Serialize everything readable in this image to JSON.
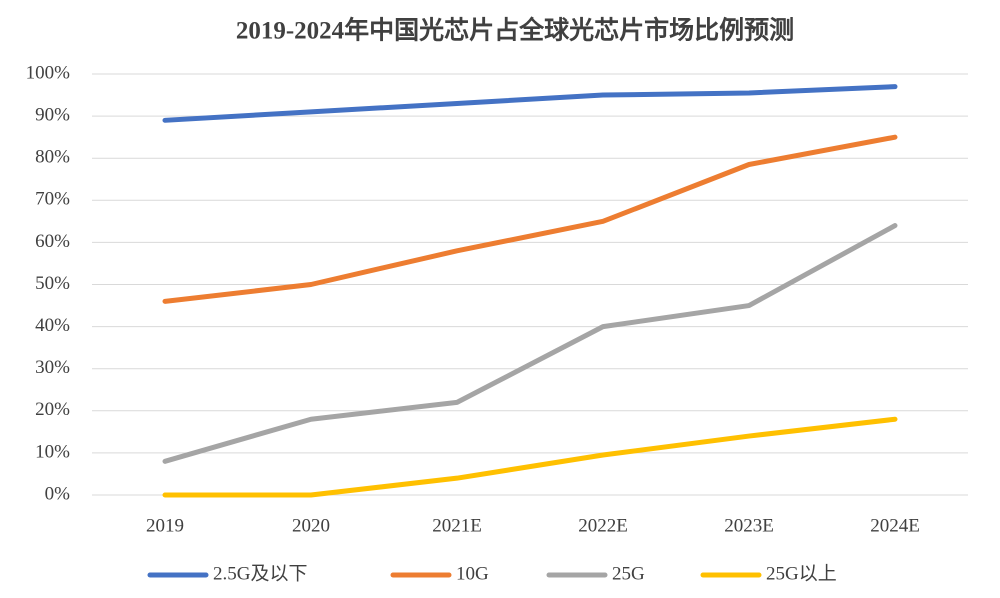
{
  "chart_data": {
    "type": "line",
    "title": "2019-2024年中国光芯片占全球光芯片市场比例预测",
    "categories": [
      "2019",
      "2020",
      "2021E",
      "2022E",
      "2023E",
      "2024E"
    ],
    "series": [
      {
        "name": "2.5G及以下",
        "color": "#4472c4",
        "values": [
          89,
          91,
          93,
          95,
          95.5,
          97
        ]
      },
      {
        "name": "10G",
        "color": "#ed7d31",
        "values": [
          46,
          50,
          58,
          65,
          78.5,
          85
        ]
      },
      {
        "name": "25G",
        "color": "#a5a5a5",
        "values": [
          8,
          18,
          22,
          40,
          45,
          64
        ]
      },
      {
        "name": "25G以上",
        "color": "#ffc000",
        "values": [
          0,
          0,
          4,
          9.5,
          14,
          18
        ]
      }
    ],
    "ylim": [
      0,
      100
    ],
    "yticks": [
      {
        "value": 0,
        "label": "0%"
      },
      {
        "value": 10,
        "label": "10%"
      },
      {
        "value": 20,
        "label": "20%"
      },
      {
        "value": 30,
        "label": "30%"
      },
      {
        "value": 40,
        "label": "40%"
      },
      {
        "value": 50,
        "label": "50%"
      },
      {
        "value": 60,
        "label": "60%"
      },
      {
        "value": 70,
        "label": "70%"
      },
      {
        "value": 80,
        "label": "80%"
      },
      {
        "value": 90,
        "label": "90%"
      },
      {
        "value": 100,
        "label": "100%"
      }
    ],
    "grid": true,
    "legend": "bottom"
  }
}
